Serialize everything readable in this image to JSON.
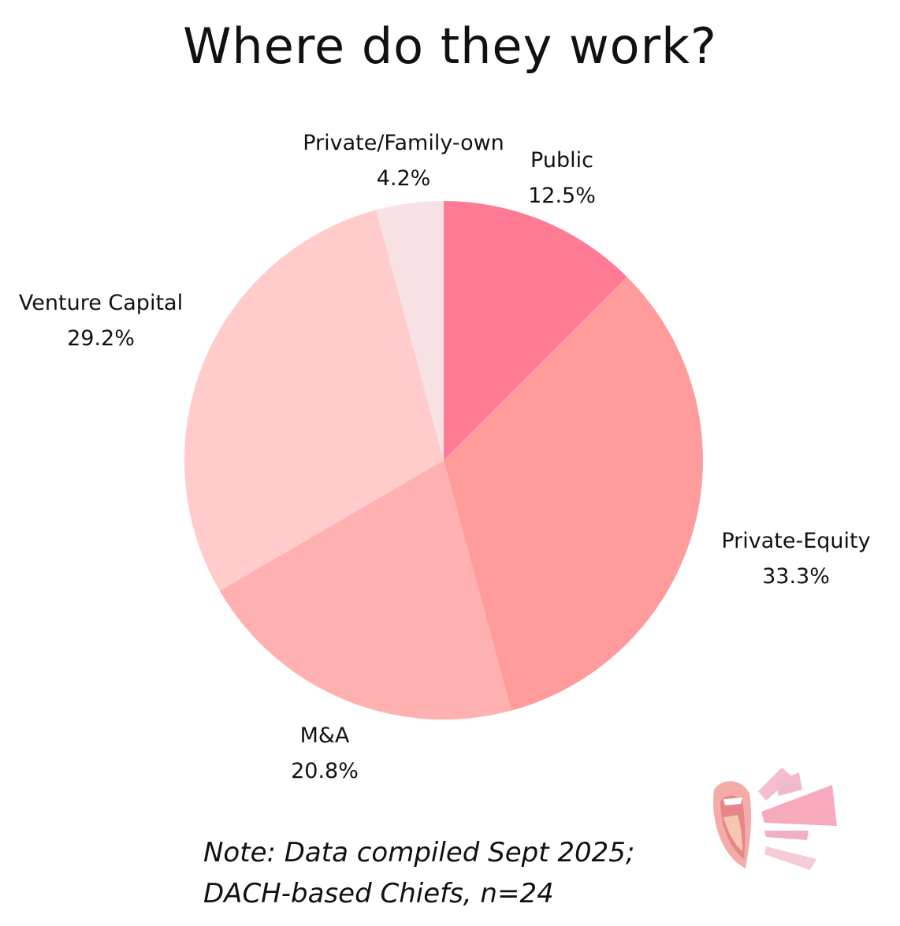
{
  "title": "Where do they work?",
  "note": {
    "line1": "Note: Data compiled Sept 2025;",
    "line2": "DACH-based Chiefs, n=24"
  },
  "logo_icon": "shouting-mouth-logo-icon",
  "chart_data": {
    "type": "pie",
    "title": "Where do they work?",
    "start_angle_deg": 0,
    "direction": "clockwise",
    "slices": [
      {
        "label": "Public",
        "value": 12.5,
        "value_label": "12.5%",
        "color": "#ff7a93"
      },
      {
        "label": "Private-Equity",
        "value": 33.3,
        "value_label": "33.3%",
        "color": "#ff9b9b"
      },
      {
        "label": "M&A",
        "value": 20.8,
        "value_label": "20.8%",
        "color": "#ffb1b1"
      },
      {
        "label": "Venture Capital",
        "value": 29.2,
        "value_label": "29.2%",
        "color": "#ffcbcb"
      },
      {
        "label": "Private/Family-own",
        "value": 4.2,
        "value_label": "4.2%",
        "color": "#f8e1e4"
      }
    ]
  }
}
